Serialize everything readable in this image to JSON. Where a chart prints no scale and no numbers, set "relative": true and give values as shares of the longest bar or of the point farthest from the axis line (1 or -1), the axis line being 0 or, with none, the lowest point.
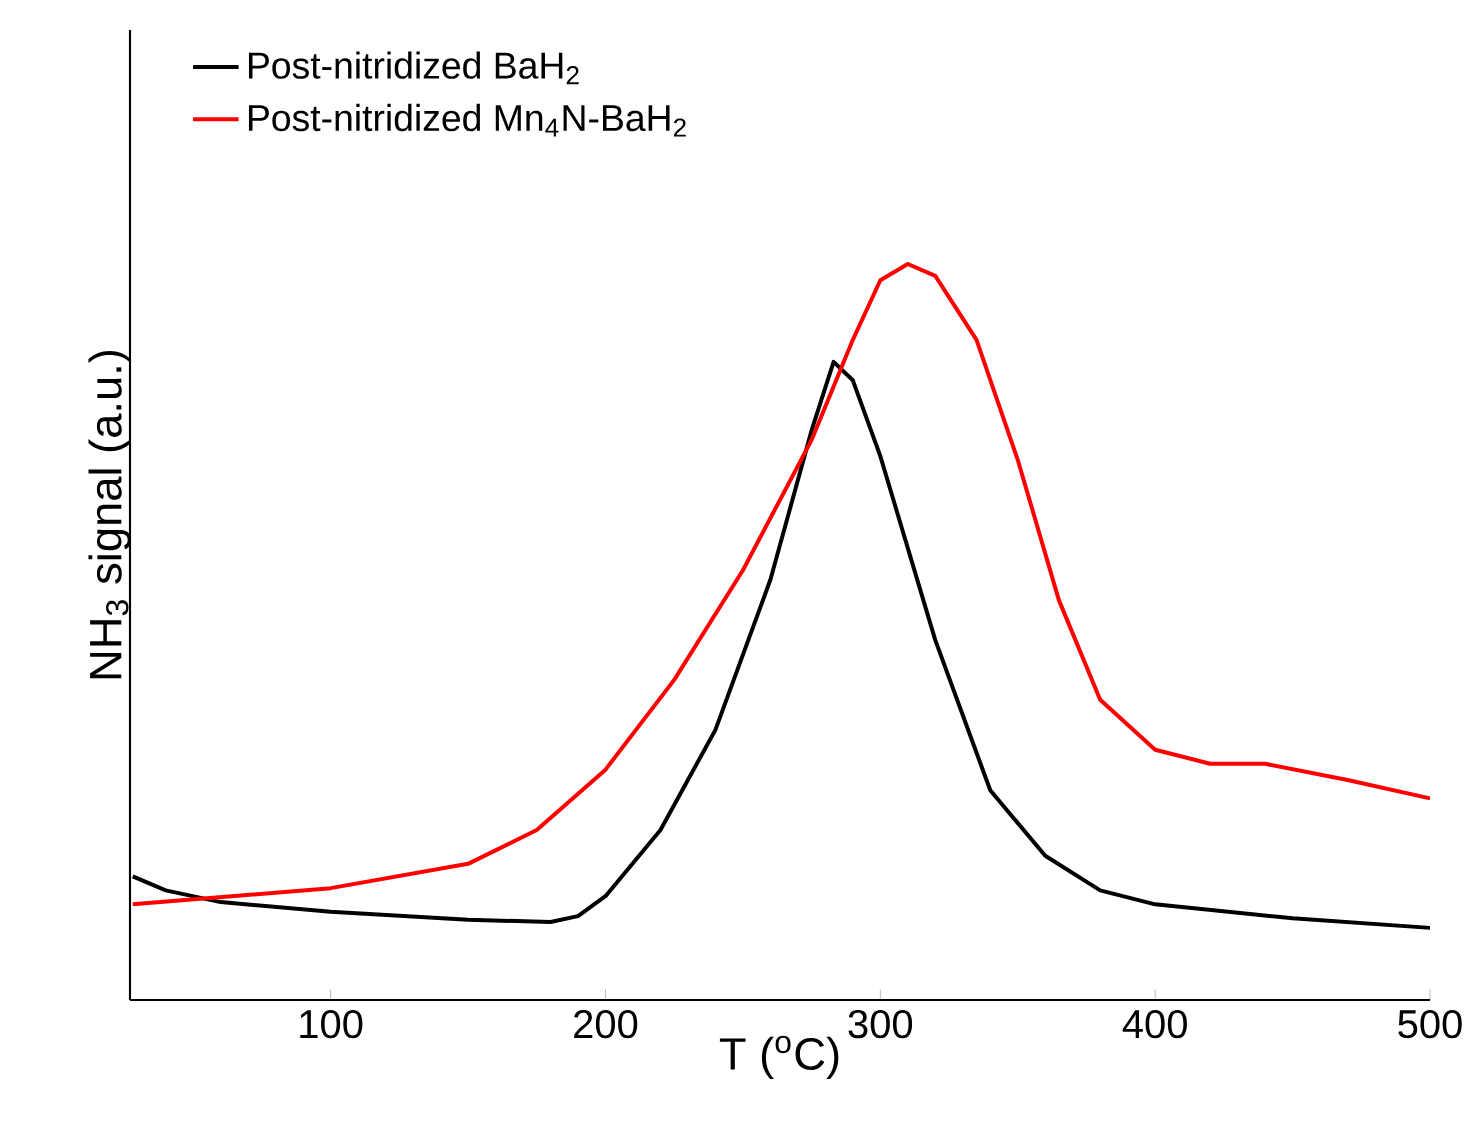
{
  "chart_data": {
    "type": "line",
    "relative": true,
    "xlabel": "T ($^{o}$C)",
    "ylabel": "NH$_{3}$ signal (a.u.)",
    "xlim": [
      27,
      500
    ],
    "xticks": [
      100,
      200,
      300,
      400,
      500
    ],
    "legend": "top left",
    "series": [
      {
        "name": "Post-nitridized BaH$_{2}$",
        "color": "#000000",
        "x": [
          28,
          40,
          60,
          100,
          150,
          180,
          190,
          200,
          220,
          240,
          260,
          275,
          283,
          290,
          300,
          320,
          340,
          360,
          380,
          400,
          450,
          500
        ],
        "values": [
          0.168,
          0.149,
          0.133,
          0.12,
          0.109,
          0.106,
          0.114,
          0.141,
          0.231,
          0.367,
          0.571,
          0.774,
          0.867,
          0.842,
          0.739,
          0.489,
          0.285,
          0.196,
          0.149,
          0.13,
          0.111,
          0.098
        ]
      },
      {
        "name": "Post-nitridized Mn$_{4}$N-BaH$_{2}$",
        "color": "#ff0000",
        "x": [
          28,
          100,
          150,
          175,
          200,
          225,
          250,
          275,
          290,
          300,
          310,
          320,
          335,
          350,
          365,
          380,
          400,
          420,
          440,
          470,
          500
        ],
        "values": [
          0.13,
          0.152,
          0.185,
          0.231,
          0.313,
          0.435,
          0.584,
          0.761,
          0.897,
          0.978,
          1.0,
          0.984,
          0.897,
          0.734,
          0.543,
          0.408,
          0.34,
          0.321,
          0.321,
          0.299,
          0.274
        ]
      }
    ]
  }
}
